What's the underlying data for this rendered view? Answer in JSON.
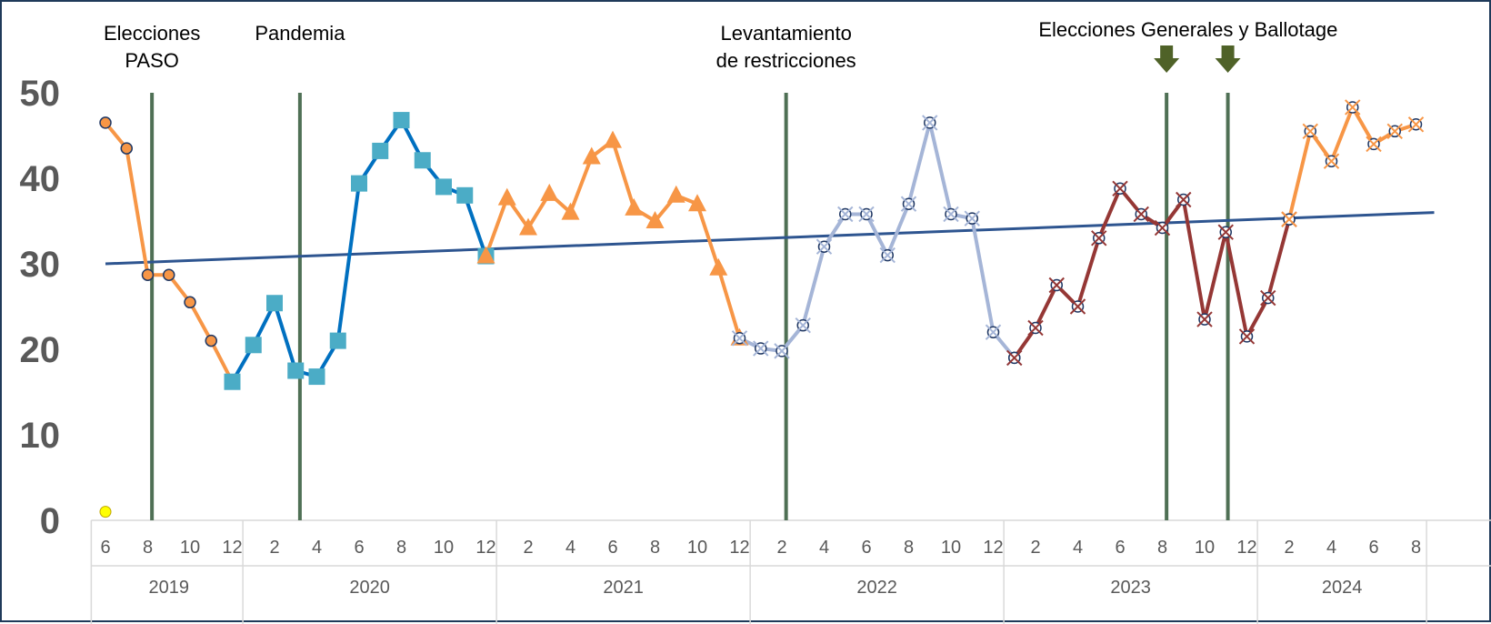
{
  "chart_data": {
    "type": "line",
    "title": "",
    "xlabel": "",
    "ylabel": "",
    "ylim": [
      0,
      50
    ],
    "yticks": [
      "0",
      "10",
      "20",
      "30",
      "40",
      "50"
    ],
    "grid": false,
    "legend": "none",
    "months": [
      "6",
      "7",
      "8",
      "9",
      "10",
      "11",
      "12",
      "1",
      "2",
      "3",
      "4",
      "5",
      "6",
      "7",
      "8",
      "9",
      "10",
      "11",
      "12",
      "1",
      "2",
      "3",
      "4",
      "5",
      "6",
      "7",
      "8",
      "9",
      "10",
      "11",
      "12",
      "1",
      "2",
      "3",
      "4",
      "5",
      "6",
      "7",
      "8",
      "9",
      "10",
      "11",
      "12",
      "1",
      "2",
      "3",
      "4",
      "5",
      "6",
      "7",
      "8",
      "9",
      "10",
      "11",
      "12",
      "1",
      "2",
      "3",
      "4",
      "5",
      "6",
      "7",
      "8"
    ],
    "month_labels": [
      "6",
      "",
      "8",
      "",
      "10",
      "",
      "12",
      "",
      "2",
      "",
      "4",
      "",
      "6",
      "",
      "8",
      "",
      "10",
      "",
      "12",
      "",
      "2",
      "",
      "4",
      "",
      "6",
      "",
      "8",
      "",
      "10",
      "",
      "12",
      "",
      "2",
      "",
      "4",
      "",
      "6",
      "",
      "8",
      "",
      "10",
      "",
      "12",
      "",
      "2",
      "",
      "4",
      "",
      "6",
      "",
      "8",
      "",
      "10",
      "",
      "12",
      "",
      "2",
      "",
      "4",
      "",
      "6",
      "",
      "8"
    ],
    "years": [
      {
        "label": "2019",
        "start": 0,
        "end": 6
      },
      {
        "label": "2020",
        "start": 7,
        "end": 18
      },
      {
        "label": "2021",
        "start": 19,
        "end": 30
      },
      {
        "label": "2022",
        "start": 31,
        "end": 42
      },
      {
        "label": "2023",
        "start": 43,
        "end": 54
      },
      {
        "label": "2024",
        "start": 55,
        "end": 62
      }
    ],
    "series": [
      {
        "color": "#F79646",
        "marker": "circle",
        "marker_fill": "#F79646",
        "points": [
          [
            0,
            46.5
          ],
          [
            1,
            43.5
          ],
          [
            2,
            28.7
          ],
          [
            3,
            28.7
          ],
          [
            4,
            25.5
          ],
          [
            5,
            21.0
          ],
          [
            6,
            16.2
          ]
        ]
      },
      {
        "color": "#0070C0",
        "marker": "square",
        "marker_fill": "#4BACC6",
        "points": [
          [
            6,
            16.2
          ],
          [
            7,
            20.5
          ],
          [
            8,
            25.4
          ],
          [
            9,
            17.5
          ],
          [
            10,
            16.8
          ],
          [
            11,
            21.0
          ],
          [
            12,
            39.4
          ],
          [
            13,
            43.2
          ],
          [
            14,
            46.8
          ],
          [
            15,
            42.1
          ],
          [
            16,
            39.0
          ],
          [
            17,
            38.0
          ],
          [
            18,
            30.9
          ]
        ]
      },
      {
        "color": "#F79646",
        "marker": "triangle",
        "marker_fill": "#F79646",
        "points": [
          [
            18,
            30.9
          ],
          [
            19,
            37.7
          ],
          [
            20,
            34.2
          ],
          [
            21,
            38.2
          ],
          [
            22,
            36.0
          ],
          [
            23,
            42.5
          ],
          [
            24,
            44.4
          ],
          [
            25,
            36.5
          ],
          [
            26,
            35.0
          ],
          [
            27,
            38.0
          ],
          [
            28,
            37.0
          ],
          [
            29,
            29.5
          ],
          [
            30,
            21.3
          ]
        ]
      },
      {
        "color": "#A5B5D7",
        "marker": "x-circle",
        "marker_fill": "none",
        "points": [
          [
            30,
            21.3
          ],
          [
            31,
            20.1
          ],
          [
            32,
            19.8
          ],
          [
            33,
            22.8
          ],
          [
            34,
            32.0
          ],
          [
            35,
            35.8
          ],
          [
            36,
            35.8
          ],
          [
            37,
            31.0
          ],
          [
            38,
            37.0
          ],
          [
            39,
            46.5
          ],
          [
            40,
            35.8
          ],
          [
            41,
            35.3
          ],
          [
            42,
            22.0
          ],
          [
            43,
            19.0
          ]
        ]
      },
      {
        "color": "#953735",
        "marker": "x-circle",
        "marker_fill": "none",
        "points": [
          [
            43,
            19.0
          ],
          [
            44,
            22.5
          ],
          [
            45,
            27.5
          ],
          [
            46,
            25.0
          ],
          [
            47,
            33.0
          ],
          [
            48,
            38.8
          ],
          [
            49,
            35.8
          ],
          [
            50,
            34.2
          ],
          [
            51,
            37.5
          ],
          [
            52,
            23.5
          ],
          [
            53,
            33.7
          ],
          [
            54,
            21.5
          ],
          [
            55,
            26.0
          ],
          [
            56,
            35.2
          ]
        ]
      },
      {
        "color": "#F79646",
        "marker": "x-circle",
        "marker_fill": "none",
        "points": [
          [
            56,
            35.2
          ],
          [
            57,
            45.5
          ],
          [
            58,
            42.0
          ],
          [
            59,
            48.3
          ],
          [
            60,
            44.0
          ],
          [
            61,
            45.5
          ],
          [
            62,
            46.3
          ]
        ]
      }
    ],
    "trendline": {
      "color": "#2E5590",
      "from": [
        0,
        30.0
      ],
      "to": [
        62,
        36.0
      ]
    },
    "outlier_point": {
      "x": 0,
      "y": 1.0,
      "color": "#FFFF00"
    },
    "events": [
      {
        "x": 2.2,
        "lines": [
          "Elecciones",
          "PASO"
        ],
        "arrow": false
      },
      {
        "x": 9.2,
        "lines": [
          "Pandemia"
        ],
        "arrow": false
      },
      {
        "x": 32.2,
        "lines": [
          "Levantamiento",
          "de restricciones"
        ],
        "arrow": false
      },
      {
        "x": 50.2,
        "lines": [],
        "arrow": true
      },
      {
        "x": 53.1,
        "lines": [],
        "arrow": true
      }
    ],
    "event_group_label": "Elecciones Generales y Ballotage",
    "event_line_color": "#4F7055",
    "arrow_color": "#4F6228"
  }
}
